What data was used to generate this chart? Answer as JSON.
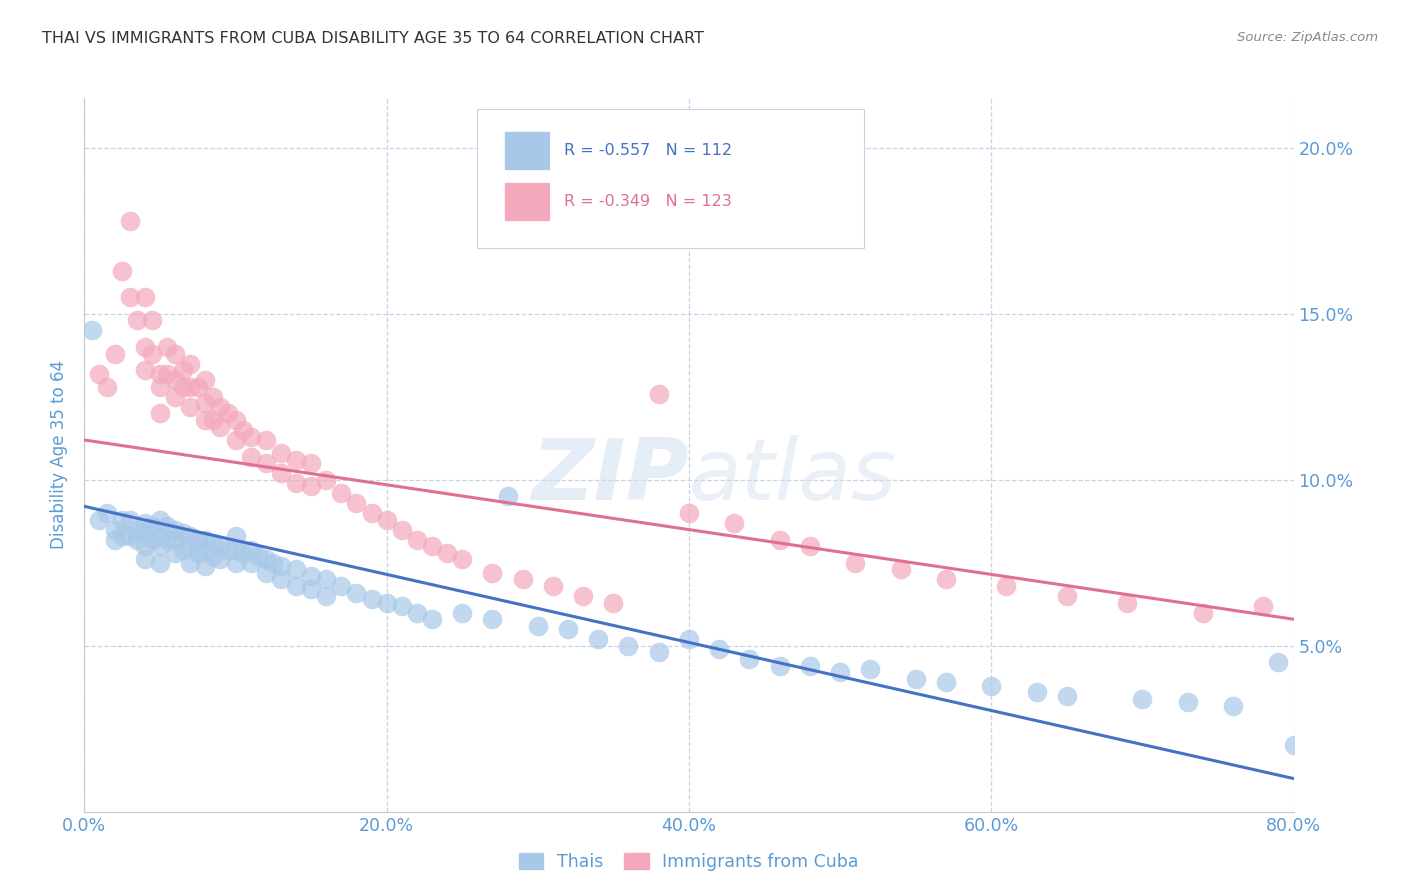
{
  "title": "THAI VS IMMIGRANTS FROM CUBA DISABILITY AGE 35 TO 64 CORRELATION CHART",
  "source": "Source: ZipAtlas.com",
  "ylabel_label": "Disability Age 35 to 64",
  "xlim": [
    0.0,
    0.8
  ],
  "ylim": [
    0.0,
    0.215
  ],
  "xticks": [
    0.0,
    0.2,
    0.4,
    0.6,
    0.8
  ],
  "yticks": [
    0.05,
    0.1,
    0.15,
    0.2
  ],
  "xtick_labels": [
    "0.0%",
    "20.0%",
    "40.0%",
    "60.0%",
    "80.0%"
  ],
  "ytick_labels": [
    "5.0%",
    "10.0%",
    "15.0%",
    "20.0%"
  ],
  "thai_R": "-0.557",
  "thai_N": "112",
  "cuba_R": "-0.349",
  "cuba_N": "123",
  "thai_color": "#a8c8e8",
  "cuba_color": "#f4a8bc",
  "thai_line_color": "#4472c4",
  "cuba_line_color": "#e07090",
  "background_color": "#ffffff",
  "grid_color": "#c8d4e8",
  "watermark": "ZIPatlas",
  "title_color": "#404040",
  "axis_color": "#5b9bd5",
  "tick_color": "#5b9bd5",
  "thai_line_start_y": 0.092,
  "thai_line_end_y": 0.01,
  "cuba_line_start_y": 0.112,
  "cuba_line_end_y": 0.058,
  "thai_scatter_x": [
    0.005,
    0.01,
    0.015,
    0.02,
    0.02,
    0.025,
    0.025,
    0.03,
    0.03,
    0.035,
    0.035,
    0.04,
    0.04,
    0.04,
    0.04,
    0.045,
    0.045,
    0.05,
    0.05,
    0.05,
    0.05,
    0.055,
    0.055,
    0.06,
    0.06,
    0.06,
    0.065,
    0.065,
    0.07,
    0.07,
    0.07,
    0.075,
    0.075,
    0.08,
    0.08,
    0.08,
    0.085,
    0.085,
    0.09,
    0.09,
    0.095,
    0.1,
    0.1,
    0.1,
    0.105,
    0.11,
    0.11,
    0.115,
    0.12,
    0.12,
    0.125,
    0.13,
    0.13,
    0.14,
    0.14,
    0.15,
    0.15,
    0.16,
    0.16,
    0.17,
    0.18,
    0.19,
    0.2,
    0.21,
    0.22,
    0.23,
    0.25,
    0.27,
    0.28,
    0.3,
    0.32,
    0.34,
    0.36,
    0.38,
    0.4,
    0.42,
    0.44,
    0.46,
    0.48,
    0.5,
    0.52,
    0.55,
    0.57,
    0.6,
    0.63,
    0.65,
    0.7,
    0.73,
    0.76,
    0.79,
    0.8
  ],
  "thai_scatter_y": [
    0.145,
    0.088,
    0.09,
    0.085,
    0.082,
    0.088,
    0.083,
    0.088,
    0.083,
    0.085,
    0.082,
    0.087,
    0.084,
    0.08,
    0.076,
    0.086,
    0.082,
    0.088,
    0.083,
    0.08,
    0.075,
    0.086,
    0.082,
    0.085,
    0.082,
    0.078,
    0.084,
    0.079,
    0.083,
    0.08,
    0.075,
    0.082,
    0.078,
    0.082,
    0.079,
    0.074,
    0.081,
    0.077,
    0.08,
    0.076,
    0.079,
    0.083,
    0.079,
    0.075,
    0.078,
    0.079,
    0.075,
    0.077,
    0.076,
    0.072,
    0.075,
    0.074,
    0.07,
    0.073,
    0.068,
    0.071,
    0.067,
    0.07,
    0.065,
    0.068,
    0.066,
    0.064,
    0.063,
    0.062,
    0.06,
    0.058,
    0.06,
    0.058,
    0.095,
    0.056,
    0.055,
    0.052,
    0.05,
    0.048,
    0.052,
    0.049,
    0.046,
    0.044,
    0.044,
    0.042,
    0.043,
    0.04,
    0.039,
    0.038,
    0.036,
    0.035,
    0.034,
    0.033,
    0.032,
    0.045,
    0.02
  ],
  "cuba_scatter_x": [
    0.01,
    0.015,
    0.02,
    0.025,
    0.03,
    0.03,
    0.035,
    0.04,
    0.04,
    0.04,
    0.045,
    0.045,
    0.05,
    0.05,
    0.05,
    0.055,
    0.055,
    0.06,
    0.06,
    0.06,
    0.065,
    0.065,
    0.07,
    0.07,
    0.07,
    0.075,
    0.08,
    0.08,
    0.08,
    0.085,
    0.085,
    0.09,
    0.09,
    0.095,
    0.1,
    0.1,
    0.105,
    0.11,
    0.11,
    0.12,
    0.12,
    0.13,
    0.13,
    0.14,
    0.14,
    0.15,
    0.15,
    0.16,
    0.17,
    0.18,
    0.19,
    0.2,
    0.21,
    0.22,
    0.23,
    0.24,
    0.25,
    0.27,
    0.29,
    0.31,
    0.33,
    0.35,
    0.38,
    0.4,
    0.43,
    0.46,
    0.48,
    0.51,
    0.54,
    0.57,
    0.61,
    0.65,
    0.69,
    0.74,
    0.78
  ],
  "cuba_scatter_y": [
    0.132,
    0.128,
    0.138,
    0.163,
    0.178,
    0.155,
    0.148,
    0.14,
    0.133,
    0.155,
    0.148,
    0.138,
    0.132,
    0.128,
    0.12,
    0.14,
    0.132,
    0.138,
    0.13,
    0.125,
    0.133,
    0.128,
    0.135,
    0.128,
    0.122,
    0.128,
    0.13,
    0.123,
    0.118,
    0.125,
    0.118,
    0.122,
    0.116,
    0.12,
    0.118,
    0.112,
    0.115,
    0.113,
    0.107,
    0.112,
    0.105,
    0.108,
    0.102,
    0.106,
    0.099,
    0.105,
    0.098,
    0.1,
    0.096,
    0.093,
    0.09,
    0.088,
    0.085,
    0.082,
    0.08,
    0.078,
    0.076,
    0.072,
    0.07,
    0.068,
    0.065,
    0.063,
    0.126,
    0.09,
    0.087,
    0.082,
    0.08,
    0.075,
    0.073,
    0.07,
    0.068,
    0.065,
    0.063,
    0.06,
    0.062
  ]
}
